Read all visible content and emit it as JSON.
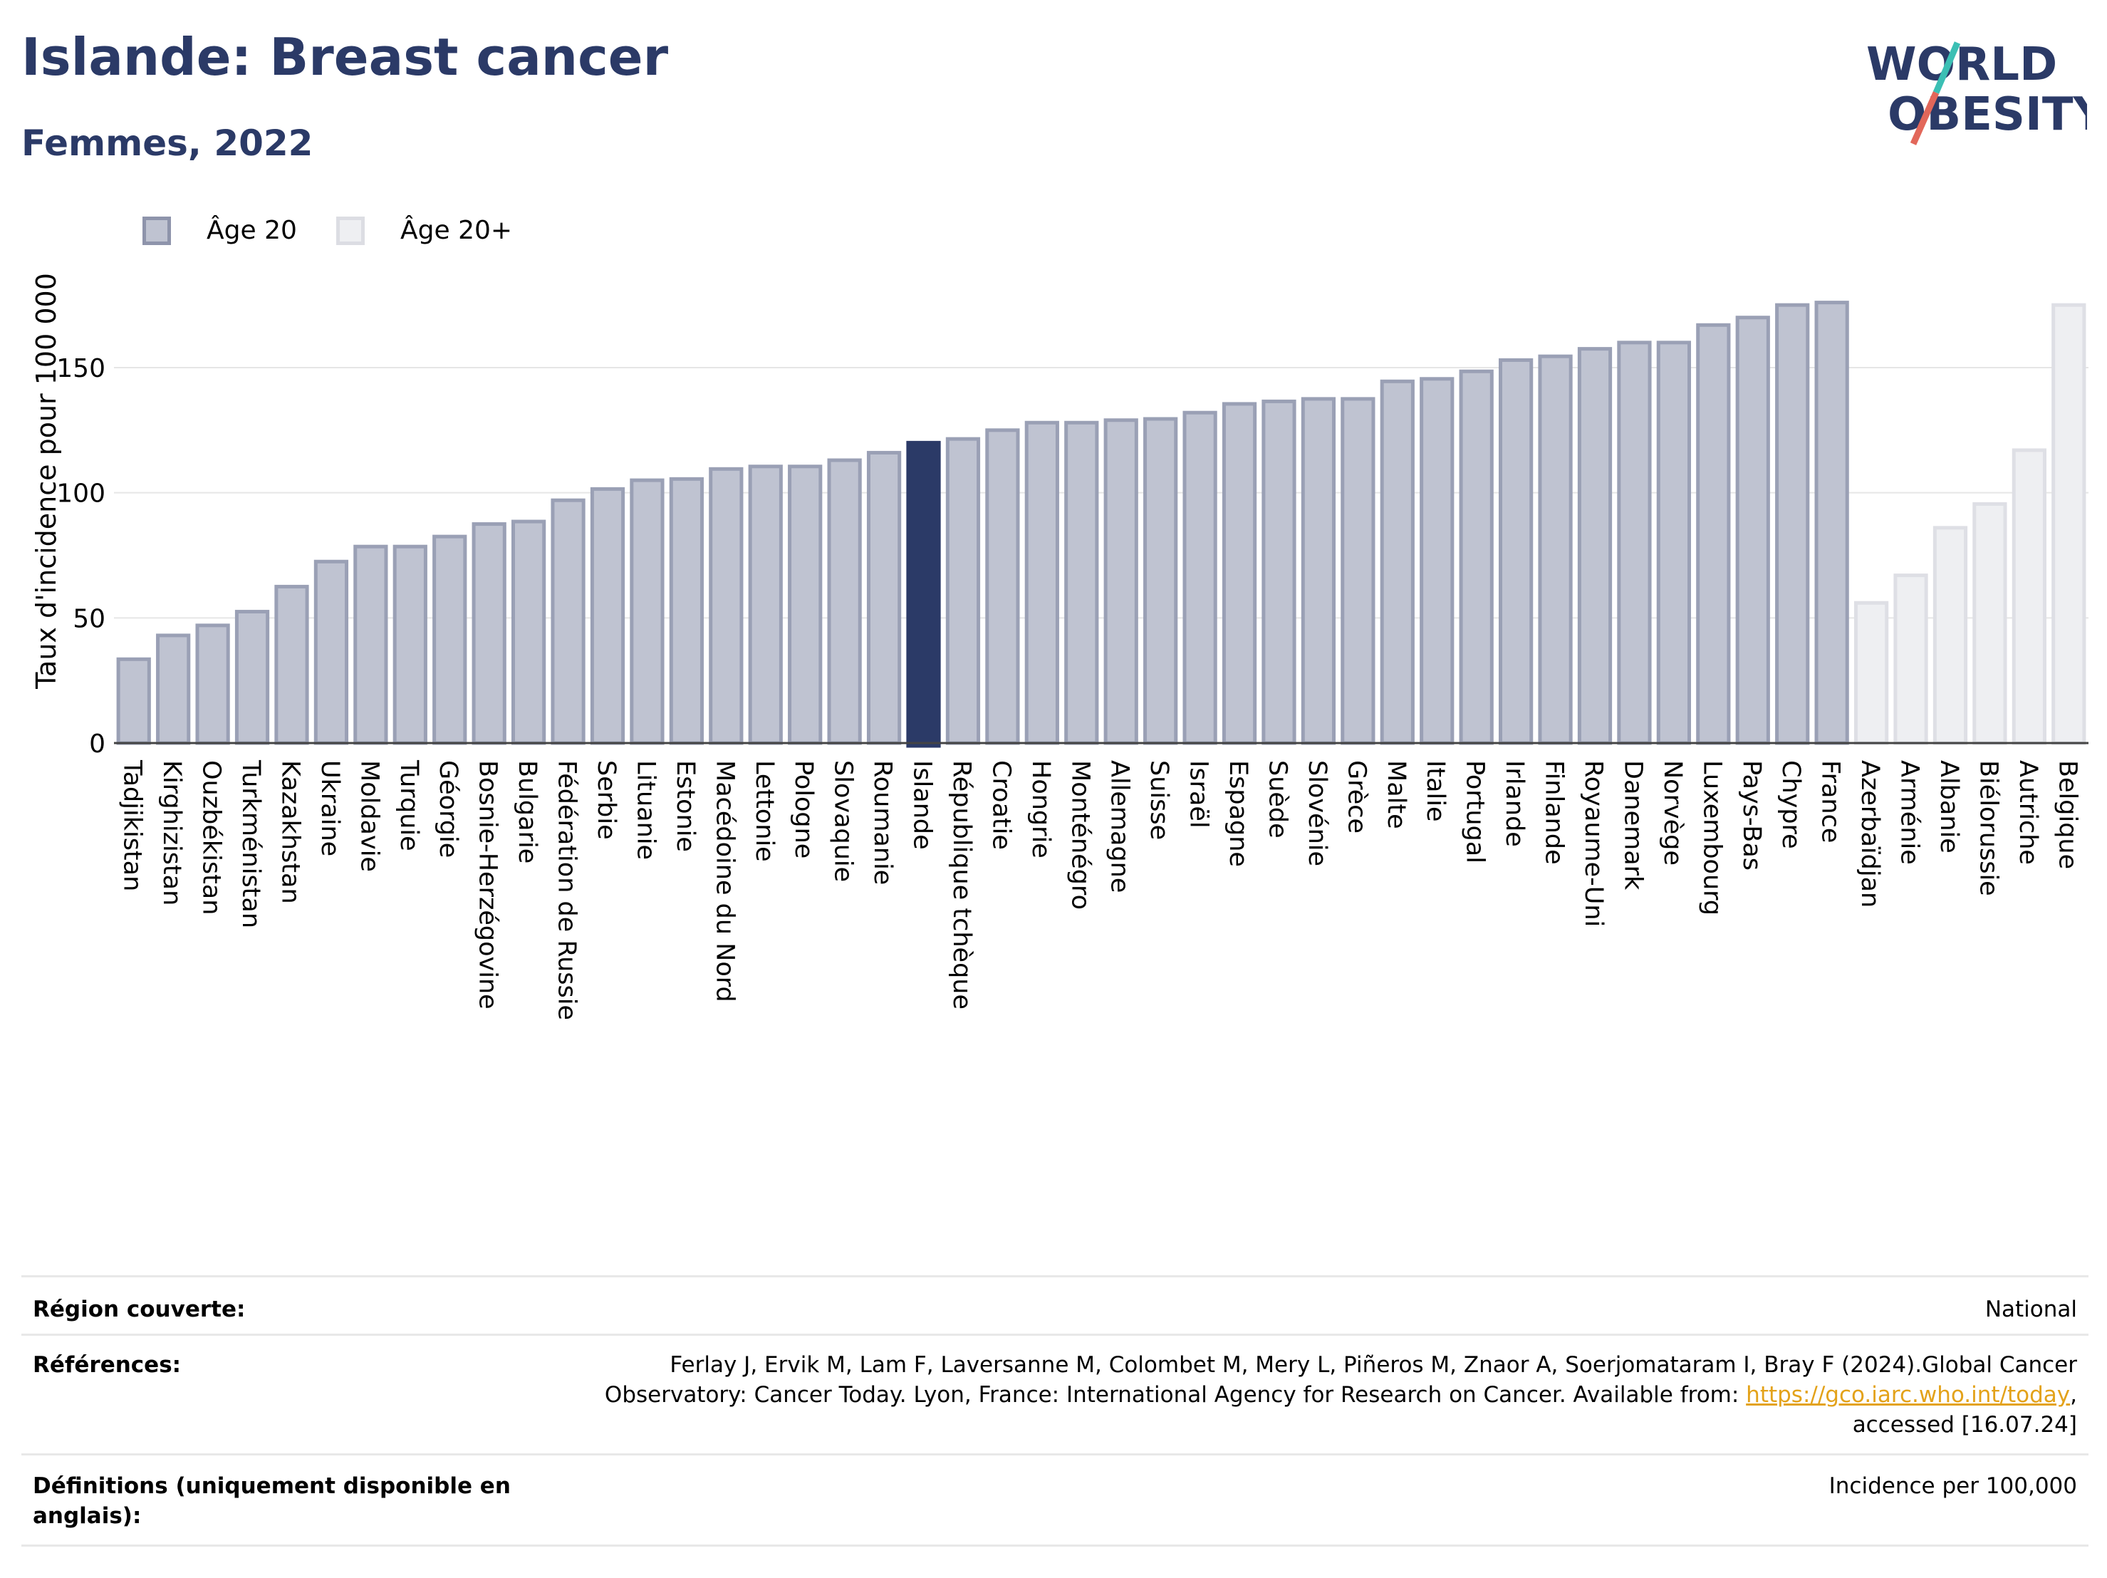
{
  "header": {
    "title": "Islande: Breast cancer",
    "subtitle": "Femmes, 2022",
    "logo_line1": "WORLD",
    "logo_line2": "OBESITY"
  },
  "legend": {
    "items": [
      {
        "label": "Âge 20",
        "color": "#bfc3d1",
        "border": "#8e94ab"
      },
      {
        "label": "Âge 20+",
        "color": "#eeeff2",
        "border": "#dcdde3"
      }
    ]
  },
  "colors": {
    "bar_fill": "#bfc3d1",
    "bar_border": "#9aa0b5",
    "highlight": "#2b3a67",
    "other_fill": "#eeeff2",
    "other_border": "#dedfe5",
    "grid": "#e6e6e6"
  },
  "chart_data": {
    "type": "bar",
    "ylabel": "Taux d'incidence pour 100 000",
    "ylim": [
      0,
      185
    ],
    "yticks": [
      0,
      50,
      100,
      150
    ],
    "highlight": "Islande",
    "grid": true,
    "categories": [
      "Tadjikistan",
      "Kirghizistan",
      "Ouzbékistan",
      "Turkménistan",
      "Kazakhstan",
      "Ukraine",
      "Moldavie",
      "Turquie",
      "Géorgie",
      "Bosnie-Herzégovine",
      "Bulgarie",
      "Fédération de Russie",
      "Serbie",
      "Lituanie",
      "Estonie",
      "Macédoine du Nord",
      "Lettonie",
      "Pologne",
      "Slovaquie",
      "Roumanie",
      "Islande",
      "République tchèque",
      "Croatie",
      "Hongrie",
      "Monténégro",
      "Allemagne",
      "Suisse",
      "Israël",
      "Espagne",
      "Suède",
      "Slovénie",
      "Grèce",
      "Malte",
      "Italie",
      "Portugal",
      "Irlande",
      "Finlande",
      "Royaume-Uni",
      "Danemark",
      "Norvège",
      "Luxembourg",
      "Pays-Bas",
      "Chypre",
      "France",
      "Azerbaïdjan",
      "Arménie",
      "Albanie",
      "Biélorussie",
      "Autriche",
      "Belgique"
    ],
    "values": [
      33.5,
      43,
      47,
      52.5,
      62.5,
      72.5,
      78.5,
      78.5,
      82.5,
      87.5,
      88.5,
      97,
      101.5,
      105,
      105.5,
      109.5,
      110.5,
      110.5,
      113,
      116,
      120,
      121.5,
      125,
      128,
      128,
      129,
      129.5,
      132,
      135.5,
      136.5,
      137.5,
      137.5,
      144.5,
      145.5,
      148.5,
      153,
      154.5,
      157.5,
      160,
      160,
      167,
      170,
      175,
      176,
      56,
      67,
      86,
      95.5,
      117,
      175
    ],
    "series_group": [
      "Âge 20",
      "Âge 20",
      "Âge 20",
      "Âge 20",
      "Âge 20",
      "Âge 20",
      "Âge 20",
      "Âge 20",
      "Âge 20",
      "Âge 20",
      "Âge 20",
      "Âge 20",
      "Âge 20",
      "Âge 20",
      "Âge 20",
      "Âge 20",
      "Âge 20",
      "Âge 20",
      "Âge 20",
      "Âge 20",
      "Âge 20",
      "Âge 20",
      "Âge 20",
      "Âge 20",
      "Âge 20",
      "Âge 20",
      "Âge 20",
      "Âge 20",
      "Âge 20",
      "Âge 20",
      "Âge 20",
      "Âge 20",
      "Âge 20",
      "Âge 20",
      "Âge 20",
      "Âge 20",
      "Âge 20",
      "Âge 20",
      "Âge 20",
      "Âge 20",
      "Âge 20",
      "Âge 20",
      "Âge 20",
      "Âge 20",
      "Âge 20+",
      "Âge 20+",
      "Âge 20+",
      "Âge 20+",
      "Âge 20+",
      "Âge 20+"
    ]
  },
  "info": {
    "rows": [
      {
        "key": "Région couverte:",
        "value_lines": [
          "National"
        ]
      },
      {
        "key": "Références:",
        "value_lines": [
          "Ferlay J, Ervik M, Lam F, Laversanne M, Colombet M, Mery L, Piñeros M, Znaor A, Soerjomataram I, Bray F (2024).Global Cancer",
          "Observatory: Cancer Today. Lyon, France: International Agency for Research on Cancer. Available from: ",
          "accessed [16.07.24]"
        ],
        "link": "https://gco.iarc.who.int/today",
        "link_suffix": ","
      },
      {
        "key_lines": [
          "Définitions (uniquement disponible en",
          "anglais):"
        ],
        "value_lines": [
          "Incidence per 100,000"
        ]
      }
    ]
  }
}
